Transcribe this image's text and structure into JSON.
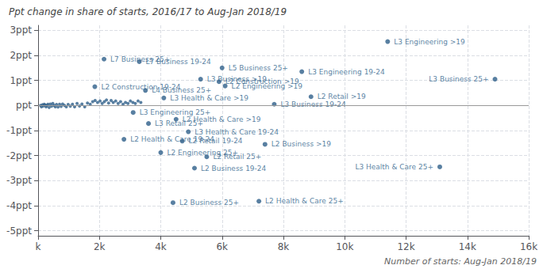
{
  "chart_data": {
    "type": "scatter",
    "title": "Ppt change in share of starts, 2016/17 to Aug-Jan 2018/19",
    "xlabel": "Number of starts: Aug-Jan 2018/19",
    "color": "#2E5F8A",
    "x": [
      80,
      110,
      140,
      170,
      200,
      230,
      260,
      290,
      320,
      360,
      400,
      440,
      480,
      520,
      560,
      600,
      650,
      700,
      750,
      800,
      860,
      920,
      980,
      1050,
      1120,
      1190,
      1270,
      1350,
      1430,
      1520,
      1610,
      1700,
      1780,
      1860,
      1940,
      2020,
      2090,
      2160,
      2230,
      2300,
      2380,
      2450,
      2530,
      2610,
      2690,
      2770,
      2850,
      2930,
      3010,
      3090,
      3170,
      3260,
      3350,
      2150,
      3300,
      6000,
      5300,
      5900,
      6100,
      1850,
      3500,
      4100,
      3100,
      4500,
      3600,
      4900,
      2800,
      4700,
      4000,
      5500,
      5100,
      4400,
      7200,
      8600,
      8900,
      7700,
      7400,
      11400,
      13100,
      14900
    ],
    "values": [
      0.0,
      -0.05,
      0.03,
      -0.02,
      0.05,
      0.02,
      -0.05,
      0.0,
      0.05,
      -0.08,
      0.06,
      -0.03,
      0.08,
      0.0,
      -0.05,
      0.04,
      -0.06,
      0.05,
      -0.04,
      0.06,
      0.0,
      -0.05,
      0.04,
      -0.03,
      0.05,
      -0.05,
      0.08,
      -0.02,
      0.06,
      -0.05,
      0.1,
      0.05,
      0.15,
      0.2,
      0.12,
      0.18,
      0.08,
      0.15,
      0.22,
      0.1,
      0.2,
      0.12,
      0.18,
      0.08,
      0.15,
      0.05,
      0.12,
      0.08,
      0.18,
      0.12,
      0.08,
      0.18,
      0.12,
      1.85,
      1.75,
      1.5,
      1.05,
      0.95,
      0.78,
      0.75,
      0.6,
      0.3,
      -0.28,
      -0.55,
      -0.72,
      -1.05,
      -1.35,
      -1.42,
      -1.88,
      -2.05,
      -2.5,
      -3.88,
      -3.82,
      1.35,
      0.35,
      0.05,
      -1.55,
      2.55,
      -2.45,
      1.05
    ],
    "point_labels": [
      null,
      null,
      null,
      null,
      null,
      null,
      null,
      null,
      null,
      null,
      null,
      null,
      null,
      null,
      null,
      null,
      null,
      null,
      null,
      null,
      null,
      null,
      null,
      null,
      null,
      null,
      null,
      null,
      null,
      null,
      null,
      null,
      null,
      null,
      null,
      null,
      null,
      null,
      null,
      null,
      null,
      null,
      null,
      null,
      null,
      null,
      null,
      null,
      null,
      null,
      null,
      null,
      null,
      "L7 Business 25+",
      "L7 Business 19-24",
      "L5 Business 25+",
      "L3 Business >19",
      "L2 Construction >19",
      "L2 Engineering >19",
      "L2 Construction 19-24",
      "L4 Business 25+",
      "L3 Health & Care >19",
      "L3 Engineering 25+",
      "L2 Health & Care >19",
      "L3 Retail 25+",
      "L3 Health & Care 19-24",
      "L2 Health & Care 19-24",
      "L2 Retail 19-24",
      "L2 Engineering 25+",
      "L2 Retail 25+",
      "L2 Business 19-24",
      "L2 Business 25+",
      "L2 Health & Care 25+",
      "L3 Engineering 19-24",
      "L2 Retail >19",
      "L3 Business 19-24",
      "L2 Business >19",
      "L3 Engineering >19",
      "L3 Health & Care 25+",
      "L3 Business 25+"
    ],
    "xlim": [
      0,
      16000
    ],
    "xticks": [
      {
        "value": 0,
        "label": "k"
      },
      {
        "value": 2000,
        "label": "2k"
      },
      {
        "value": 4000,
        "label": "4k"
      },
      {
        "value": 6000,
        "label": "6k"
      },
      {
        "value": 8000,
        "label": "8k"
      },
      {
        "value": 10000,
        "label": "10k"
      },
      {
        "value": 12000,
        "label": "12k"
      },
      {
        "value": 14000,
        "label": "14k"
      },
      {
        "value": 16000,
        "label": "16k"
      }
    ],
    "ylim": [
      -5.2,
      3.2
    ],
    "yticks": [
      {
        "value": -5,
        "label": "-5ppt"
      },
      {
        "value": -4,
        "label": "-4ppt"
      },
      {
        "value": -3,
        "label": "-3ppt"
      },
      {
        "value": -2,
        "label": "-2ppt"
      },
      {
        "value": -1,
        "label": "-1ppt"
      },
      {
        "value": 0,
        "label": "ppt"
      },
      {
        "value": 1,
        "label": "1ppt"
      },
      {
        "value": 2,
        "label": "2ppt"
      },
      {
        "value": 3,
        "label": "3ppt"
      }
    ],
    "grid": true
  }
}
